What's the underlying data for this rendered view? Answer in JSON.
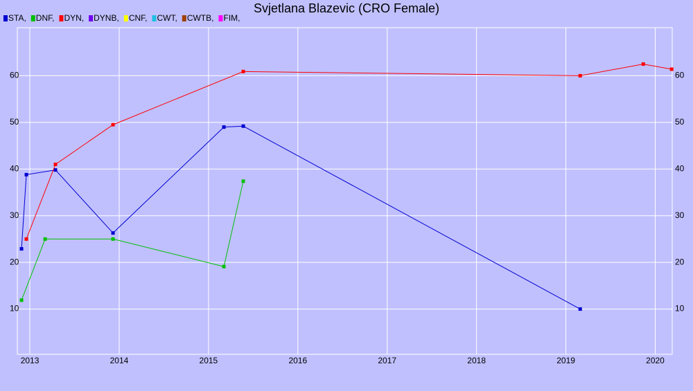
{
  "chart_data": {
    "type": "line",
    "title": "Svjetlana Blazevic (CRO Female)",
    "xlim": [
      2012.86,
      2020.19
    ],
    "xticks": [
      2013,
      2014,
      2015,
      2016,
      2017,
      2018,
      2019,
      2020
    ],
    "ylim": [
      0,
      70
    ],
    "yticks": [
      10,
      20,
      30,
      40,
      50,
      60
    ],
    "grid": true,
    "series": [
      {
        "name": "STA,",
        "color": "#0000d0",
        "x": [
          2012.907,
          2012.961,
          2013.287,
          2013.931,
          2015.172,
          2015.389,
          2019.16
        ],
        "values": [
          22.9,
          38.8,
          39.8,
          26.3,
          49.0,
          49.2,
          10.0
        ]
      },
      {
        "name": "DNF,",
        "color": "#00c000",
        "x": [
          2012.907,
          2013.171,
          2013.931,
          2015.172,
          2015.389
        ],
        "values": [
          11.9,
          25.0,
          25.0,
          19.1,
          37.4
        ]
      },
      {
        "name": "DYN,",
        "color": "#ff0000",
        "x": [
          2012.961,
          2013.287,
          2013.931,
          2015.389,
          2019.16,
          2019.866,
          2020.184
        ],
        "values": [
          25.0,
          41.0,
          49.5,
          60.9,
          60.0,
          62.5,
          61.4
        ]
      },
      {
        "name": "DYNB,",
        "color": "#7000f0",
        "x": [],
        "values": []
      },
      {
        "name": "CNF,",
        "color": "#ffff00",
        "x": [],
        "values": []
      },
      {
        "name": "CWT,",
        "color": "#20c0e0",
        "x": [],
        "values": []
      },
      {
        "name": "CWTB,",
        "color": "#a04000",
        "x": [],
        "values": []
      },
      {
        "name": "FIM,",
        "color": "#ff00ff",
        "x": [],
        "values": []
      }
    ]
  }
}
